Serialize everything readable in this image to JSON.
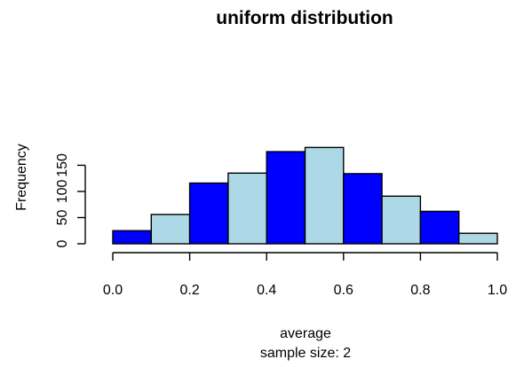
{
  "chart_data": {
    "type": "bar",
    "title": "uniform distribution",
    "xlabel": "average",
    "xlabel2": "sample size: 2",
    "ylabel": "Frequency",
    "bin_edges": [
      0.0,
      0.1,
      0.2,
      0.3,
      0.4,
      0.5,
      0.6,
      0.7,
      0.8,
      0.9,
      1.0
    ],
    "values": [
      25,
      56,
      116,
      135,
      176,
      184,
      134,
      91,
      62,
      20
    ],
    "colors": [
      "#0000ff",
      "#add8e6",
      "#0000ff",
      "#add8e6",
      "#0000ff",
      "#add8e6",
      "#0000ff",
      "#add8e6",
      "#0000ff",
      "#add8e6"
    ],
    "xticks": [
      "0.0",
      "0.2",
      "0.4",
      "0.6",
      "0.8",
      "1.0"
    ],
    "yticks": [
      "0",
      "50",
      "100",
      "150"
    ],
    "xlim": [
      0,
      1
    ],
    "ylim": [
      0,
      184
    ],
    "grid": false,
    "legend": "none"
  }
}
